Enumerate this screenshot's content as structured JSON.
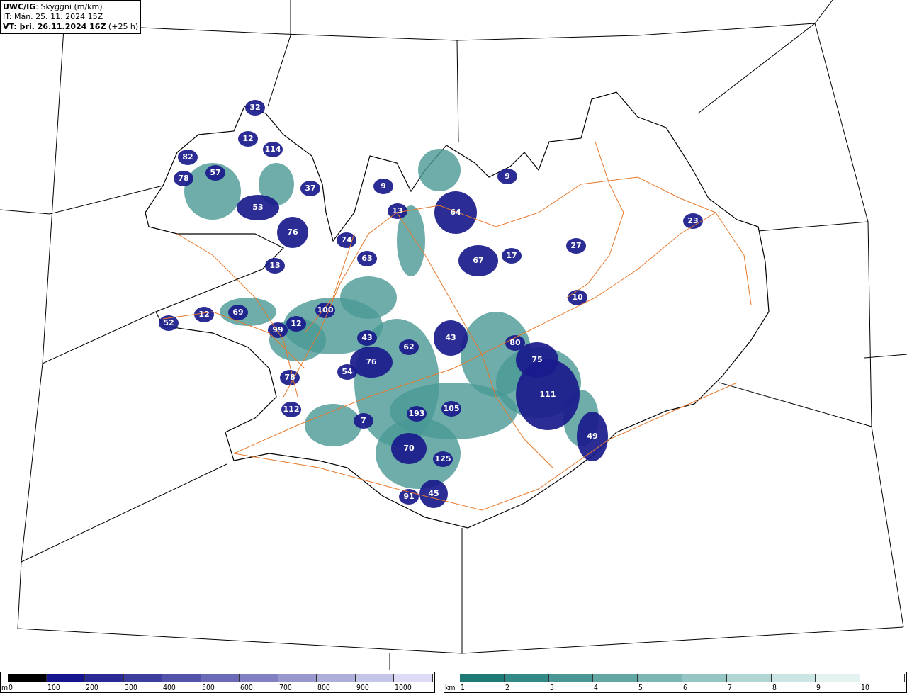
{
  "header": {
    "model": "UWC/IG",
    "field": ": Skyggni (m/km)",
    "it_line": "IT: Mán. 25. 11. 2024 15Z",
    "vt_bold": "VT: þri. 26.11.2024 16Z",
    "vt_lead": " (+25 h)"
  },
  "map": {
    "values": [
      "32",
      "12",
      "114",
      "82",
      "57",
      "78",
      "37",
      "53",
      "76",
      "13",
      "74",
      "63",
      "9",
      "13",
      "9",
      "64",
      "67",
      "17",
      "23",
      "27",
      "10",
      "100",
      "12",
      "69",
      "52",
      "99",
      "12",
      "43",
      "62",
      "43",
      "80",
      "75",
      "76",
      "54",
      "78",
      "111",
      "193",
      "105",
      "112",
      "7",
      "49",
      "70",
      "125",
      "45",
      "91"
    ],
    "colors": {
      "coast": "#000000",
      "roads": "#e8782a",
      "low_vis": "#1a1a8c",
      "mid_vis": "#2e8a85"
    }
  },
  "legend_m": {
    "unit": "m",
    "ticks": [
      "0",
      "100",
      "200",
      "300",
      "400",
      "500",
      "600",
      "700",
      "800",
      "900",
      "1000"
    ],
    "colors": [
      "#000000",
      "#14148c",
      "#2a2a96",
      "#3e3ea0",
      "#5353ab",
      "#6a6ab7",
      "#8080c3",
      "#9898cf",
      "#aeaedb",
      "#c5c5e9",
      "#dcdcf7"
    ]
  },
  "legend_km": {
    "unit": "km",
    "ticks": [
      "1",
      "2",
      "3",
      "4",
      "5",
      "6",
      "7",
      "8",
      "9",
      "10"
    ],
    "colors": [
      "#1d7a75",
      "#328985",
      "#4a9895",
      "#62a7a4",
      "#7bb6b4",
      "#96c6c4",
      "#b0d6d4",
      "#cbe5e4",
      "#e5f2f2",
      "#ffffff"
    ]
  }
}
